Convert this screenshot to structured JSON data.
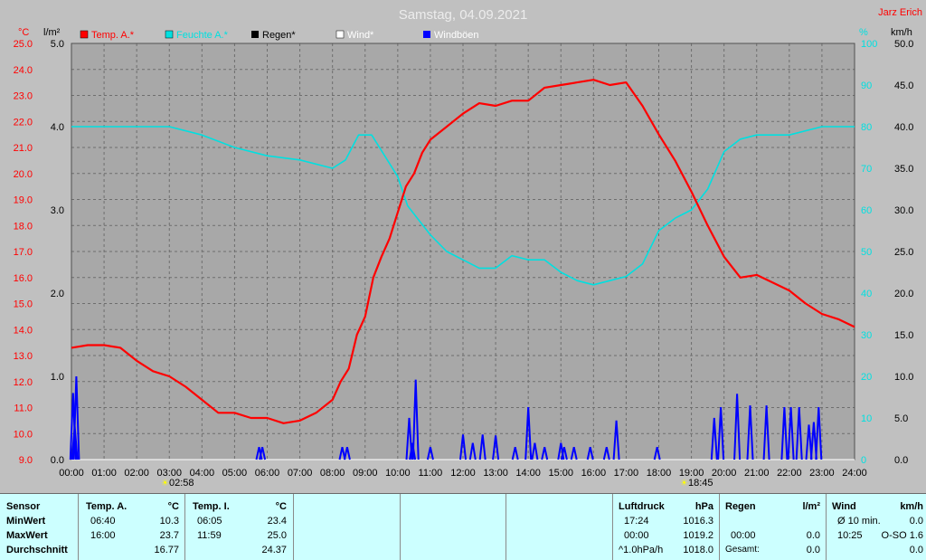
{
  "colors": {
    "temp": "#ff0000",
    "humidity": "#00e0e0",
    "rain": "#000000",
    "wind": "#ffffff",
    "gust": "#0000ff",
    "axis_left": "#ff0000",
    "axis_right_humidity": "#00e0e0"
  },
  "chart_data": {
    "type": "line",
    "title": "Samstag, 04.09.2021",
    "author": "Jarz Erich",
    "grid": true,
    "legend_position": "top-left",
    "x_ticks": [
      "00:00",
      "01:00",
      "02:00",
      "03:00",
      "04:00",
      "05:00",
      "06:00",
      "07:00",
      "08:00",
      "09:00",
      "10:00",
      "11:00",
      "12:00",
      "13:00",
      "14:00",
      "15:00",
      "16:00",
      "17:00",
      "18:00",
      "19:00",
      "20:00",
      "21:00",
      "22:00",
      "23:00",
      "24:00"
    ],
    "xlim": [
      0,
      24
    ],
    "sunrise": "02:58",
    "sunset": "18:45",
    "axes": {
      "temp": {
        "unit": "°C",
        "range": [
          9.0,
          25.0
        ],
        "ticks": [
          "9.0",
          "10.0",
          "11.0",
          "12.0",
          "13.0",
          "14.0",
          "15.0",
          "16.0",
          "17.0",
          "18.0",
          "19.0",
          "20.0",
          "21.0",
          "22.0",
          "23.0",
          "24.0",
          "25.0"
        ]
      },
      "rain": {
        "unit": "l/m²",
        "range": [
          0.0,
          5.0
        ],
        "ticks": [
          "0.0",
          "1.0",
          "2.0",
          "3.0",
          "4.0",
          "5.0"
        ]
      },
      "humidity": {
        "unit": "%",
        "range": [
          0,
          100
        ],
        "ticks": [
          "0",
          "10",
          "20",
          "30",
          "40",
          "50",
          "60",
          "70",
          "80",
          "90",
          "100"
        ]
      },
      "wind": {
        "unit": "km/h",
        "range": [
          0.0,
          50.0
        ],
        "ticks": [
          "0.0",
          "5.0",
          "10.0",
          "15.0",
          "20.0",
          "25.0",
          "30.0",
          "35.0",
          "40.0",
          "45.0",
          "50.0"
        ]
      }
    },
    "series": [
      {
        "name": "Temp. A.*",
        "axis": "temp",
        "x": [
          0,
          0.5,
          1,
          1.5,
          2,
          2.5,
          3,
          3.5,
          4,
          4.5,
          5,
          5.5,
          6,
          6.5,
          7,
          7.5,
          8,
          8.25,
          8.5,
          8.75,
          9,
          9.25,
          9.5,
          9.75,
          10,
          10.25,
          10.5,
          10.75,
          11,
          11.5,
          12,
          12.5,
          13,
          13.5,
          14,
          14.5,
          15,
          15.5,
          16,
          16.5,
          17,
          17.5,
          18,
          18.5,
          19,
          19.5,
          20,
          20.5,
          21,
          21.5,
          22,
          22.5,
          23,
          23.5,
          24
        ],
        "y": [
          13.3,
          13.4,
          13.4,
          13.3,
          12.8,
          12.4,
          12.2,
          11.8,
          11.3,
          10.8,
          10.8,
          10.6,
          10.6,
          10.4,
          10.5,
          10.8,
          11.3,
          12.0,
          12.5,
          13.8,
          14.5,
          16.0,
          16.8,
          17.5,
          18.5,
          19.5,
          20.0,
          20.8,
          21.3,
          21.8,
          22.3,
          22.7,
          22.6,
          22.8,
          22.8,
          23.3,
          23.4,
          23.5,
          23.6,
          23.4,
          23.5,
          22.6,
          21.5,
          20.5,
          19.3,
          18.0,
          16.8,
          16.0,
          16.1,
          15.8,
          15.5,
          15.0,
          14.6,
          14.4,
          14.1
        ]
      },
      {
        "name": "Feuchte A.*",
        "axis": "humidity",
        "x": [
          0,
          1,
          2,
          3,
          4,
          5,
          6,
          7,
          8,
          8.4,
          8.8,
          9.2,
          9.6,
          10,
          10.3,
          10.6,
          11,
          11.5,
          12,
          12.5,
          13,
          13.5,
          14,
          14.5,
          15,
          15.5,
          16,
          16.5,
          17,
          17.5,
          18,
          18.5,
          19,
          19.5,
          20,
          20.5,
          21,
          22,
          23,
          24
        ],
        "y": [
          80,
          80,
          80,
          80,
          78,
          75,
          73,
          72,
          70,
          72,
          78,
          78,
          73,
          68,
          61,
          58,
          54,
          50,
          48,
          46,
          46,
          49,
          48,
          48,
          45,
          43,
          42,
          43,
          44,
          47,
          55,
          58,
          60,
          65,
          74,
          77,
          78,
          78,
          80,
          80
        ]
      },
      {
        "name": "Regen*",
        "axis": "rain",
        "x": [
          0,
          24
        ],
        "y": [
          0,
          0
        ]
      },
      {
        "name": "Wind*",
        "axis": "wind",
        "x": [
          0,
          24
        ],
        "y": [
          0,
          0
        ]
      },
      {
        "name": "Windböen",
        "axis": "wind",
        "x": [
          0.05,
          0.1,
          0.15,
          5.75,
          5.85,
          8.3,
          8.45,
          10.35,
          10.45,
          10.55,
          11.0,
          12.0,
          12.3,
          12.6,
          13.0,
          13.6,
          14.0,
          14.2,
          14.5,
          15.0,
          15.1,
          15.4,
          15.9,
          16.4,
          16.7,
          17.95,
          19.7,
          19.9,
          20.4,
          20.8,
          21.3,
          21.85,
          22.05,
          22.3,
          22.6,
          22.75,
          22.9
        ],
        "y": [
          8,
          4,
          10,
          1.5,
          1.5,
          1.5,
          1.5,
          5,
          2,
          9.6,
          1.5,
          3,
          2,
          3.0,
          2.9,
          1.5,
          6.3,
          2,
          1.5,
          2,
          1.5,
          1.5,
          1.5,
          1.5,
          4.7,
          1.5,
          5,
          6.3,
          7.9,
          6.5,
          6.5,
          6.3,
          6.3,
          6.3,
          4.2,
          4.5,
          6.3
        ]
      }
    ]
  },
  "table": {
    "sensor": {
      "header": "Sensor",
      "min": "MinWert",
      "max": "MaxWert",
      "avg": "Durchschnitt"
    },
    "temp_a": {
      "header": "Temp. A.",
      "unit": "°C",
      "min_time": "06:40",
      "min_val": "10.3",
      "max_time": "16:00",
      "max_val": "23.7",
      "avg": "16.77"
    },
    "temp_i": {
      "header": "Temp. I.",
      "unit": "°C",
      "min_time": "06:05",
      "min_val": "23.4",
      "max_time": "11:59",
      "max_val": "25.0",
      "avg": "24.37"
    },
    "pressure": {
      "header": "Luftdruck",
      "unit": "hPa",
      "min_time": "17:24",
      "min_val": "1016.3",
      "max_time": "00:00",
      "max_val": "1019.2",
      "trend_label": "^1.0hPa/h",
      "trend_val": "1018.0"
    },
    "rain": {
      "header": "Regen",
      "unit": "l/m²",
      "max_time": "00:00",
      "max_val": "0.0",
      "total_label": "Gesamt:",
      "total_val": "0.0"
    },
    "wind": {
      "header": "Wind",
      "unit": "km/h",
      "min_label": "Ø 10 min.",
      "min_val": "0.0",
      "max_time": "10:25",
      "max_val": "O-SO 1.6",
      "avg": "0.0"
    }
  }
}
